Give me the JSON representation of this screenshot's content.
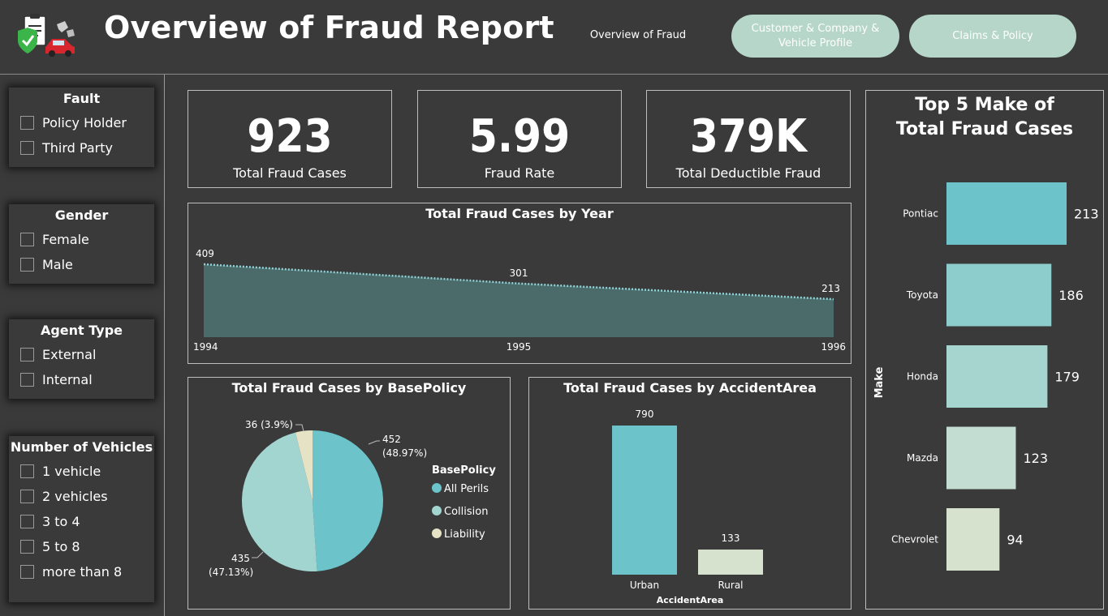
{
  "header": {
    "title": "Overview of Fraud Report",
    "nav_active": "Overview of Fraud",
    "nav_buttons": [
      "Customer & Company & Vehicle Profile",
      "Claims & Policy"
    ]
  },
  "slicers": [
    {
      "title": "Fault",
      "items": [
        "Policy Holder",
        "Third Party"
      ]
    },
    {
      "title": "Gender",
      "items": [
        "Female",
        "Male"
      ]
    },
    {
      "title": "Agent Type",
      "items": [
        "External",
        "Internal"
      ]
    },
    {
      "title": "Number of Vehicles",
      "items": [
        "1 vehicle",
        "2 vehicles",
        "3 to 4",
        "5 to 8",
        "more than 8"
      ]
    }
  ],
  "kpis": [
    {
      "value": "923",
      "label": "Total Fraud Cases"
    },
    {
      "value": "5.99",
      "label": "Fraud Rate"
    },
    {
      "value": "379K",
      "label": "Total Deductible Fraud"
    }
  ],
  "colors": {
    "background": "#3a3a3a",
    "teal": "#6cc3ca",
    "teal_light": "#a2d4d0",
    "cream": "#e6e2c6",
    "nav_button": "#b5d6c9"
  },
  "chart_data": [
    {
      "type": "area",
      "title": "Total Fraud Cases by Year",
      "x": [
        "1994",
        "1995",
        "1996"
      ],
      "values": [
        409,
        301,
        213
      ]
    },
    {
      "type": "pie",
      "title": "Total Fraud Cases by BasePolicy",
      "legend_title": "BasePolicy",
      "legend_position": "right",
      "slices": [
        {
          "name": "All Perils",
          "value": 452,
          "label": "452",
          "pct": "(48.97%)",
          "color": "#6cc3ca"
        },
        {
          "name": "Collision",
          "value": 435,
          "label": "435",
          "pct": "(47.13%)",
          "color": "#a2d4d0"
        },
        {
          "name": "Liability",
          "value": 36,
          "label": "36 (3.9%)",
          "pct": "",
          "color": "#e6e2c6"
        }
      ]
    },
    {
      "type": "bar",
      "title": "Total Fraud Cases by AccidentArea",
      "xlabel": "AccidentArea",
      "categories": [
        "Urban",
        "Rural"
      ],
      "values": [
        790,
        133
      ],
      "colors": [
        "#6cc3ca",
        "#d6e2cd"
      ]
    },
    {
      "type": "bar",
      "orientation": "horizontal",
      "title": "Top 5 Make of Total Fraud Cases",
      "ylabel": "Make",
      "categories": [
        "Pontiac",
        "Toyota",
        "Honda",
        "Mazda",
        "Chevrolet"
      ],
      "values": [
        213,
        186,
        179,
        123,
        94
      ],
      "colors": [
        "#6cc3ca",
        "#8dcdcc",
        "#a6d5cf",
        "#c3ddd3",
        "#d6e2cd"
      ]
    }
  ]
}
